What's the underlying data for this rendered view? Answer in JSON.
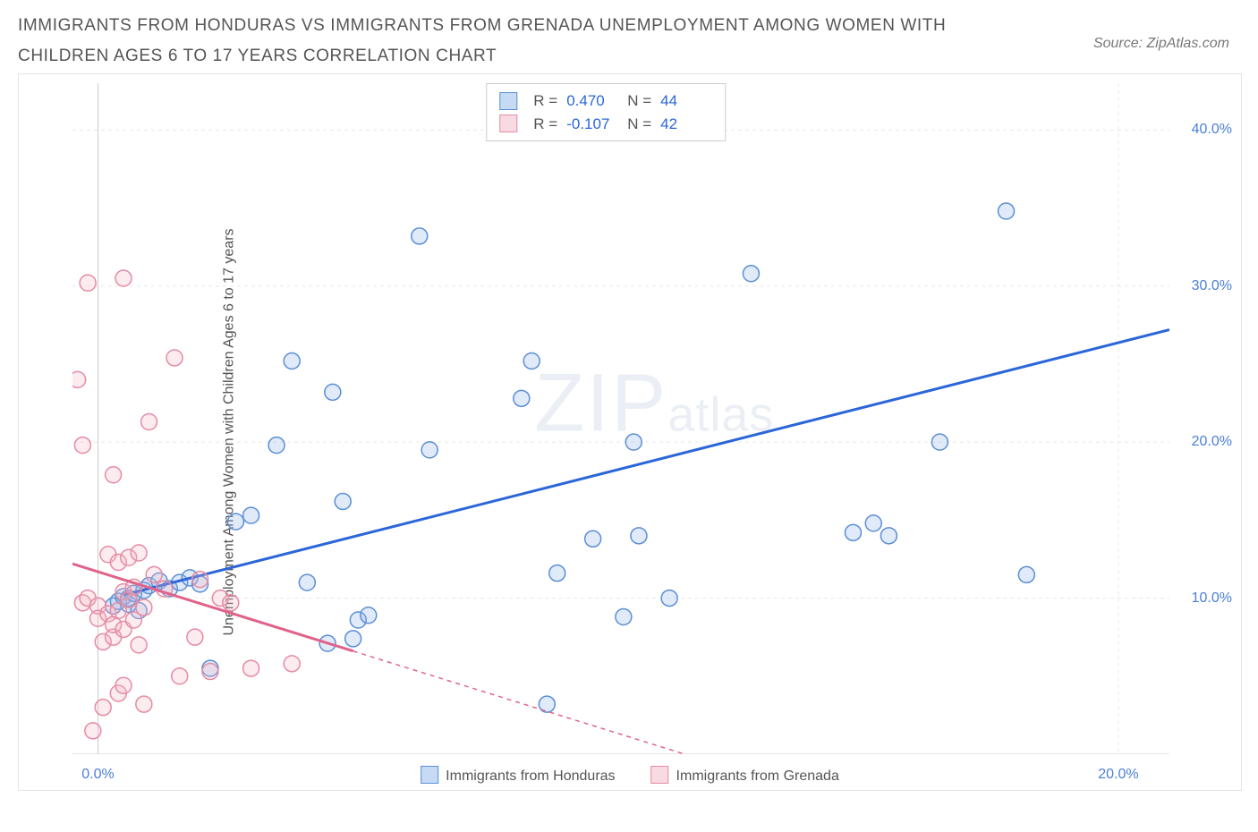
{
  "title": "IMMIGRANTS FROM HONDURAS VS IMMIGRANTS FROM GRENADA UNEMPLOYMENT AMONG WOMEN WITH CHILDREN AGES 6 TO 17 YEARS CORRELATION CHART",
  "source": "Source: ZipAtlas.com",
  "ylabel": "Unemployment Among Women with Children Ages 6 to 17 years",
  "watermark_big": "ZIP",
  "watermark_small": "atlas",
  "chart": {
    "type": "scatter",
    "background_color": "#ffffff",
    "grid_color": "#e8e8e8",
    "axis_color": "#cccccc",
    "title_fontsize": 19,
    "label_fontsize": 16,
    "tick_color": "#4a7fd6",
    "xlim": [
      -0.5,
      21
    ],
    "ylim": [
      0,
      43
    ],
    "xticks": [
      0,
      20
    ],
    "xtick_labels": [
      "0.0%",
      "20.0%"
    ],
    "yticks": [
      10,
      20,
      30,
      40
    ],
    "ytick_labels": [
      "10.0%",
      "20.0%",
      "30.0%",
      "40.0%"
    ],
    "marker_radius": 9,
    "marker_opacity": 0.28,
    "series": [
      {
        "id": "honduras",
        "label": "Immigrants from Honduras",
        "color_stroke": "#5b8fd6",
        "color_fill": "#8fb5e8",
        "r_value": "0.470",
        "n_value": "44",
        "trend": {
          "x1": 0.5,
          "y1": 10.2,
          "x2": 21,
          "y2": 27.2,
          "solid_until_x": 21,
          "color": "#2b66d9"
        },
        "points": [
          [
            0.3,
            9.5
          ],
          [
            0.4,
            9.8
          ],
          [
            0.5,
            10.1
          ],
          [
            0.6,
            9.6
          ],
          [
            0.6,
            10.0
          ],
          [
            0.7,
            10.3
          ],
          [
            0.8,
            9.2
          ],
          [
            0.9,
            10.5
          ],
          [
            1.0,
            10.8
          ],
          [
            1.2,
            11.1
          ],
          [
            1.4,
            10.6
          ],
          [
            1.6,
            11.0
          ],
          [
            1.8,
            11.3
          ],
          [
            2.0,
            10.9
          ],
          [
            2.7,
            14.9
          ],
          [
            3.0,
            15.3
          ],
          [
            3.5,
            19.8
          ],
          [
            3.8,
            25.2
          ],
          [
            4.1,
            11.0
          ],
          [
            4.5,
            7.1
          ],
          [
            4.6,
            23.2
          ],
          [
            4.8,
            16.2
          ],
          [
            5.0,
            7.4
          ],
          [
            5.1,
            8.6
          ],
          [
            5.3,
            8.9
          ],
          [
            6.3,
            33.2
          ],
          [
            6.5,
            19.5
          ],
          [
            8.3,
            22.8
          ],
          [
            8.5,
            25.2
          ],
          [
            8.8,
            3.2
          ],
          [
            9.0,
            11.6
          ],
          [
            9.7,
            13.8
          ],
          [
            10.3,
            8.8
          ],
          [
            10.5,
            20.0
          ],
          [
            10.6,
            14.0
          ],
          [
            11.2,
            10.0
          ],
          [
            12.8,
            30.8
          ],
          [
            14.8,
            14.2
          ],
          [
            15.2,
            14.8
          ],
          [
            15.5,
            14.0
          ],
          [
            16.5,
            20.0
          ],
          [
            17.8,
            34.8
          ],
          [
            18.2,
            11.5
          ],
          [
            2.2,
            5.5
          ]
        ]
      },
      {
        "id": "grenada",
        "label": "Immigrants from Grenada",
        "color_stroke": "#e68ba4",
        "color_fill": "#f4b6c6",
        "r_value": "-0.107",
        "n_value": "42",
        "trend": {
          "x1": -0.5,
          "y1": 12.2,
          "x2": 11.5,
          "y2": 0,
          "solid_until_x": 5.0,
          "color": "#e06389"
        },
        "points": [
          [
            -0.3,
            9.7
          ],
          [
            -0.2,
            10.0
          ],
          [
            -0.1,
            1.5
          ],
          [
            -0.3,
            19.8
          ],
          [
            -0.4,
            24.0
          ],
          [
            -0.2,
            30.2
          ],
          [
            0.0,
            9.5
          ],
          [
            0.0,
            8.7
          ],
          [
            0.1,
            3.0
          ],
          [
            0.1,
            7.2
          ],
          [
            0.2,
            12.8
          ],
          [
            0.2,
            9.0
          ],
          [
            0.3,
            7.5
          ],
          [
            0.3,
            8.3
          ],
          [
            0.3,
            17.9
          ],
          [
            0.4,
            12.3
          ],
          [
            0.4,
            9.2
          ],
          [
            0.4,
            3.9
          ],
          [
            0.5,
            10.4
          ],
          [
            0.5,
            8.0
          ],
          [
            0.5,
            30.5
          ],
          [
            0.5,
            4.4
          ],
          [
            0.6,
            9.9
          ],
          [
            0.6,
            12.6
          ],
          [
            0.7,
            10.7
          ],
          [
            0.7,
            8.6
          ],
          [
            0.8,
            7.0
          ],
          [
            0.8,
            12.9
          ],
          [
            0.9,
            9.4
          ],
          [
            0.9,
            3.2
          ],
          [
            1.0,
            21.3
          ],
          [
            1.1,
            11.5
          ],
          [
            1.3,
            10.6
          ],
          [
            1.5,
            25.4
          ],
          [
            1.6,
            5.0
          ],
          [
            1.9,
            7.5
          ],
          [
            2.0,
            11.2
          ],
          [
            2.2,
            5.3
          ],
          [
            2.4,
            10.0
          ],
          [
            2.6,
            9.7
          ],
          [
            3.0,
            5.5
          ],
          [
            3.8,
            5.8
          ]
        ]
      }
    ],
    "rn_legend_labels": {
      "r_prefix": "R =",
      "n_prefix": "N ="
    },
    "x_legend": [
      {
        "series": "honduras"
      },
      {
        "series": "grenada"
      }
    ]
  }
}
